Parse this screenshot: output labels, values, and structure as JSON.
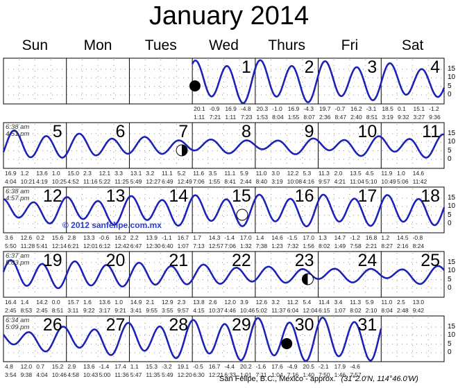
{
  "title": "January 2014",
  "weekdays": [
    "Sun",
    "Mon",
    "Tues",
    "Wed",
    "Thurs",
    "Fri",
    "Sat"
  ],
  "first_weekday_index": 3,
  "axis_ticks": [
    15,
    10,
    5,
    0
  ],
  "colors": {
    "tide": "#1c22b8",
    "grid": "#888888",
    "copyright": "#2a3bd0"
  },
  "sun_times": [
    null,
    {
      "sunrise": "6:38 am",
      "sunset": "4:51 pm"
    },
    {
      "sunrise": "6:38 am",
      "sunset": "4:57 pm"
    },
    {
      "sunrise": "6:37 am",
      "sunset": "5:03 pm"
    },
    {
      "sunrise": "6:34 am",
      "sunset": "5:09 pm"
    }
  ],
  "chart_data": {
    "type": "line",
    "ylabel": "",
    "ylim": [
      -5,
      21
    ],
    "y_ticks": [
      0,
      5,
      10,
      15
    ],
    "grid": true,
    "days": [
      {
        "day": 1,
        "moon": "new-moon",
        "tides": [
          [
            "20.1",
            "1:11"
          ],
          [
            "-0.9",
            "7:21"
          ],
          [
            "16.9",
            "1:11"
          ],
          [
            "-4.8",
            "7:23"
          ]
        ]
      },
      {
        "day": 2,
        "tides": [
          [
            "20.3",
            "1:53"
          ],
          [
            "-1.0",
            "8:04"
          ],
          [
            "16.9",
            "1:55"
          ],
          [
            "-4.3",
            "8:07"
          ]
        ]
      },
      {
        "day": 3,
        "tides": [
          [
            "19.7",
            "2:36"
          ],
          [
            "-0.7",
            "8:47"
          ],
          [
            "16.2",
            "2:40"
          ],
          [
            "-3.1",
            "8:51"
          ]
        ]
      },
      {
        "day": 4,
        "tides": [
          [
            "18.5",
            "3:19"
          ],
          [
            "0.1",
            "9:32"
          ],
          [
            "15.1",
            "3:27"
          ],
          [
            "-1.2",
            "9:36"
          ]
        ]
      },
      {
        "day": 5,
        "tides": [
          [
            "16.9",
            "4:04"
          ],
          [
            "1.2",
            "10:21"
          ],
          [
            "13.6",
            "4:19"
          ],
          [
            "1.0",
            "10:25"
          ]
        ]
      },
      {
        "day": 6,
        "tides": [
          [
            "15.0",
            "4:52"
          ],
          [
            "2.3",
            "11:16"
          ],
          [
            "12.1",
            "5:22"
          ],
          [
            "3.3",
            "11:25"
          ]
        ]
      },
      {
        "day": 7,
        "moon": "first-quarter",
        "tides": [
          [
            "13.1",
            "5:49"
          ],
          [
            "3.2",
            "12:27"
          ],
          [
            "11.1",
            "6:49"
          ]
        ]
      },
      {
        "day": 8,
        "tides": [
          [
            "5.2",
            "12:49"
          ],
          [
            "11.6",
            "7:06"
          ],
          [
            "3.5",
            "1:55"
          ],
          [
            "11.1",
            "8:41"
          ]
        ]
      },
      {
        "day": 9,
        "tides": [
          [
            "5.9",
            "2:44"
          ],
          [
            "11.0",
            "8:40"
          ],
          [
            "3.0",
            "3:19"
          ],
          [
            "12.2",
            "10:08"
          ]
        ]
      },
      {
        "day": 10,
        "tides": [
          [
            "5.3",
            "4:16"
          ],
          [
            "11.3",
            "9:57"
          ],
          [
            "2.0",
            "4:21"
          ],
          [
            "13.5",
            "11:04"
          ]
        ]
      },
      {
        "day": 11,
        "tides": [
          [
            "4.5",
            "5:10"
          ],
          [
            "11.9",
            "10:49"
          ],
          [
            "1.0",
            "5:06"
          ],
          [
            "14.6",
            "11:42"
          ]
        ]
      },
      {
        "day": 12,
        "tides": [
          [
            "3.6",
            "5:50"
          ],
          [
            "12.6",
            "11:28"
          ],
          [
            "0.2",
            "5:41"
          ]
        ]
      },
      {
        "day": 13,
        "tides": [
          [
            "15.6",
            "12:14"
          ],
          [
            "2.8",
            "6:21"
          ],
          [
            "13.3",
            "12:01"
          ],
          [
            "-0.6",
            "6:12"
          ]
        ]
      },
      {
        "day": 14,
        "tides": [
          [
            "16.2",
            "12:42"
          ],
          [
            "2.2",
            "6:47"
          ],
          [
            "13.9",
            "12:30"
          ],
          [
            "-1.1",
            "6:40"
          ]
        ]
      },
      {
        "day": 15,
        "moon": "full-moon",
        "tides": [
          [
            "16.7",
            "1:07"
          ],
          [
            "1.7",
            "7:13"
          ],
          [
            "14.3",
            "12:57"
          ],
          [
            "-1.4",
            "7:06"
          ]
        ]
      },
      {
        "day": 16,
        "tides": [
          [
            "17.0",
            "1:32"
          ],
          [
            "1.4",
            "7:38"
          ],
          [
            "14.6",
            "1:23"
          ],
          [
            "-1.5",
            "7:32"
          ]
        ]
      },
      {
        "day": 17,
        "tides": [
          [
            "17.0",
            "1:56"
          ],
          [
            "1.3",
            "8:02"
          ],
          [
            "14.7",
            "1:49"
          ],
          [
            "-1.2",
            "7:58"
          ]
        ]
      },
      {
        "day": 18,
        "tides": [
          [
            "16.8",
            "2:21"
          ],
          [
            "1.2",
            "8:27"
          ],
          [
            "14.5",
            "2:16"
          ],
          [
            "-0.8",
            "8:24"
          ]
        ]
      },
      {
        "day": 19,
        "tides": [
          [
            "16.4",
            "2:45"
          ],
          [
            "1.4",
            "8:53"
          ],
          [
            "14.2",
            "2:45"
          ],
          [
            "0.0",
            "8:51"
          ]
        ]
      },
      {
        "day": 20,
        "tides": [
          [
            "15.7",
            "3:11"
          ],
          [
            "1.6",
            "9:22"
          ],
          [
            "13.6",
            "3:17"
          ],
          [
            "1.0",
            "9:21"
          ]
        ]
      },
      {
        "day": 21,
        "tides": [
          [
            "14.9",
            "3:41"
          ],
          [
            "2.1",
            "9:55"
          ],
          [
            "12.9",
            "3:55"
          ],
          [
            "2.3",
            "9:57"
          ]
        ]
      },
      {
        "day": 22,
        "tides": [
          [
            "13.8",
            "4:15"
          ],
          [
            "2.6",
            "10:37"
          ],
          [
            "12.0",
            "4:46"
          ],
          [
            "3.9",
            "10:46"
          ]
        ]
      },
      {
        "day": 23,
        "moon": "last-quarter",
        "tides": [
          [
            "12.6",
            "5:02"
          ],
          [
            "3.2",
            "11:37"
          ],
          [
            "11.2",
            "6:04"
          ]
        ]
      },
      {
        "day": 24,
        "tides": [
          [
            "5.4",
            "12:04"
          ],
          [
            "11.4",
            "6:15"
          ],
          [
            "3.4",
            "1:07"
          ],
          [
            "11.3",
            "8:02"
          ]
        ]
      },
      {
        "day": 25,
        "tides": [
          [
            "5.9",
            "2:10"
          ],
          [
            "11.0",
            "8:04"
          ],
          [
            "2.5",
            "2:48"
          ],
          [
            "13.0",
            "9:42"
          ]
        ]
      },
      {
        "day": 26,
        "tides": [
          [
            "4.8",
            "3:54"
          ],
          [
            "12.0",
            "9:38"
          ],
          [
            "0.7",
            "4:04"
          ],
          [
            "15.2",
            "10:46"
          ]
        ]
      },
      {
        "day": 27,
        "tides": [
          [
            "2.9",
            "4:58"
          ],
          [
            "13.6",
            "10:43"
          ],
          [
            "-1.4",
            "5:00"
          ],
          [
            "17.4",
            "11:36"
          ]
        ]
      },
      {
        "day": 28,
        "tides": [
          [
            "1.1",
            "5:47"
          ],
          [
            "15.3",
            "11:35"
          ],
          [
            "-3.2",
            "5:49"
          ]
        ]
      },
      {
        "day": 29,
        "tides": [
          [
            "19.1",
            "12:20"
          ],
          [
            "-0.5",
            "6:30"
          ],
          [
            "16.7",
            "12:21"
          ],
          [
            "-4.4",
            "6:33"
          ]
        ]
      },
      {
        "day": 30,
        "moon": "new-moon",
        "tides": [
          [
            "20.2",
            "1:01"
          ],
          [
            "-1.6",
            "7:11"
          ],
          [
            "17.6",
            "1:04"
          ],
          [
            "-4.9",
            "7:16"
          ]
        ]
      },
      {
        "day": 31,
        "tides": [
          [
            "20.5",
            "1:40"
          ],
          [
            "-2.1",
            "7:50"
          ],
          [
            "17.9",
            "1:46"
          ],
          [
            "-4.6",
            "7:57"
          ]
        ]
      }
    ]
  },
  "copyright": "© 2012 sanfelipe.com.mx",
  "footer": {
    "location": "San Felipe, B.C., Mexico - approx.",
    "coords": "(31°2.0'N,  114°46.0'W)"
  }
}
